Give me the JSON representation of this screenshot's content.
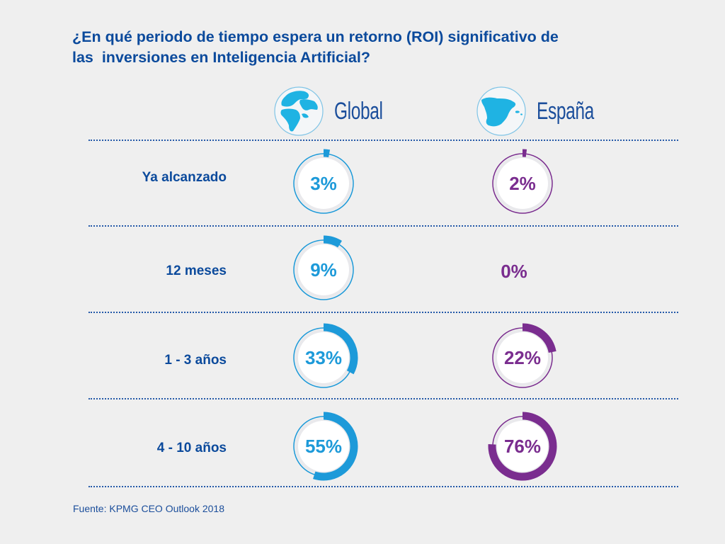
{
  "title": {
    "line1": "¿En qué periodo de tiempo espera un retorno (ROI) significativo de",
    "line2": "las  inversiones en Inteligencia Artificial?"
  },
  "columns": [
    {
      "name": "Global",
      "icon": "globe-icon",
      "color": "#1d9ad9"
    },
    {
      "name": "España",
      "icon": "spain-map-icon",
      "color": "#7a2d8f"
    }
  ],
  "source": "Fuente: KPMG CEO Outlook 2018",
  "chart_data": {
    "type": "donut",
    "title": "¿En qué periodo de tiempo espera un retorno (ROI) significativo de las inversiones en Inteligencia Artificial?",
    "categories": [
      "Ya alcanzado",
      "12 meses",
      "1 - 3 años",
      "4 - 10 años"
    ],
    "series": [
      {
        "name": "Global",
        "values": [
          3,
          9,
          33,
          55
        ],
        "labels": [
          "3%",
          "9%",
          "33%",
          "55%"
        ],
        "color": "#1d9ad9"
      },
      {
        "name": "España",
        "values": [
          2,
          0,
          22,
          76
        ],
        "labels": [
          "2%",
          "0%",
          "22%",
          "76%"
        ],
        "color": "#7a2d8f"
      }
    ],
    "unit": "%",
    "source": "Fuente: KPMG CEO Outlook 2018"
  }
}
